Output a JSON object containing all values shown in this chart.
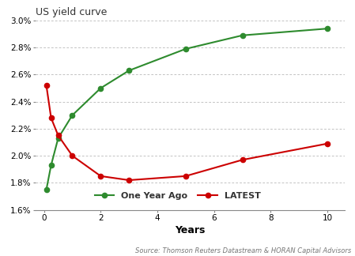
{
  "title": "US yield curve",
  "xlabel": "Years",
  "source_text": "Source: Thomson Reuters Datastream & HORAN Capital Advisors",
  "one_year_ago": {
    "x": [
      0.083,
      0.25,
      0.5,
      1,
      2,
      3,
      5,
      7,
      10
    ],
    "y": [
      0.0175,
      0.0193,
      0.0213,
      0.023,
      0.025,
      0.0263,
      0.0279,
      0.0289,
      0.0294
    ],
    "color": "#2e8b2e",
    "label": "One Year Ago"
  },
  "latest": {
    "x": [
      0.083,
      0.25,
      0.5,
      1,
      2,
      3,
      5,
      7,
      10
    ],
    "y": [
      0.0252,
      0.0228,
      0.0215,
      0.02,
      0.0185,
      0.0182,
      0.0185,
      0.0197,
      0.0209
    ],
    "color": "#cc0000",
    "label": "LATEST"
  },
  "ylim": [
    0.016,
    0.03
  ],
  "xlim": [
    -0.3,
    10.6
  ],
  "yticks": [
    0.016,
    0.018,
    0.02,
    0.022,
    0.024,
    0.026,
    0.028,
    0.03
  ],
  "xticks": [
    0,
    2,
    4,
    6,
    8,
    10
  ],
  "background_color": "#ffffff",
  "grid_color": "#aaaaaa",
  "title_fontsize": 9,
  "axis_label_fontsize": 9,
  "tick_fontsize": 7.5,
  "source_fontsize": 6,
  "legend_fontsize": 8
}
